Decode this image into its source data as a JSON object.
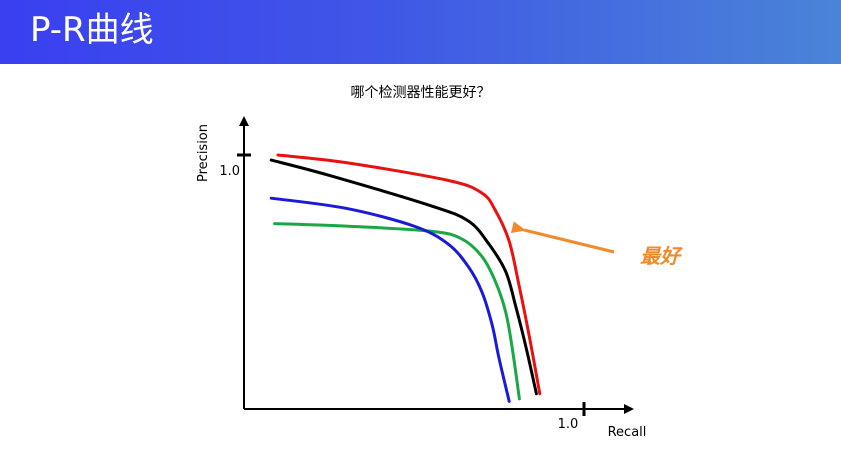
{
  "slide": {
    "title": "P-R曲线",
    "subtitle": "哪个检测器性能更好？",
    "callout": "最好"
  },
  "chart_data": {
    "type": "line",
    "xlabel": "Recall",
    "ylabel": "Precision",
    "x_tick_label": "1.0",
    "y_tick_label": "1.0",
    "xlim": [
      0,
      1.06
    ],
    "ylim": [
      0,
      1.18
    ],
    "grid": false,
    "series": [
      {
        "color": "#e81010",
        "x": [
          0.1,
          0.3,
          0.6,
          0.7,
          0.74,
          0.78,
          0.81,
          0.84,
          0.87
        ],
        "y": [
          1.0,
          0.97,
          0.9,
          0.85,
          0.78,
          0.66,
          0.48,
          0.28,
          0.06
        ]
      },
      {
        "color": "#000000",
        "x": [
          0.08,
          0.25,
          0.55,
          0.66,
          0.72,
          0.77,
          0.8,
          0.83,
          0.86
        ],
        "y": [
          0.98,
          0.92,
          0.8,
          0.74,
          0.65,
          0.54,
          0.4,
          0.24,
          0.06
        ]
      },
      {
        "color": "#1a1ad8",
        "x": [
          0.08,
          0.3,
          0.5,
          0.6,
          0.66,
          0.7,
          0.73,
          0.75,
          0.78
        ],
        "y": [
          0.83,
          0.79,
          0.72,
          0.65,
          0.56,
          0.46,
          0.33,
          0.2,
          0.03
        ]
      },
      {
        "color": "#1aa845",
        "x": [
          0.09,
          0.3,
          0.55,
          0.64,
          0.7,
          0.74,
          0.77,
          0.79,
          0.81
        ],
        "y": [
          0.73,
          0.72,
          0.7,
          0.67,
          0.6,
          0.5,
          0.38,
          0.23,
          0.04
        ]
      }
    ],
    "annotation": {
      "text": "最好",
      "color": "#f08a2a",
      "points_to_series": 0
    }
  }
}
